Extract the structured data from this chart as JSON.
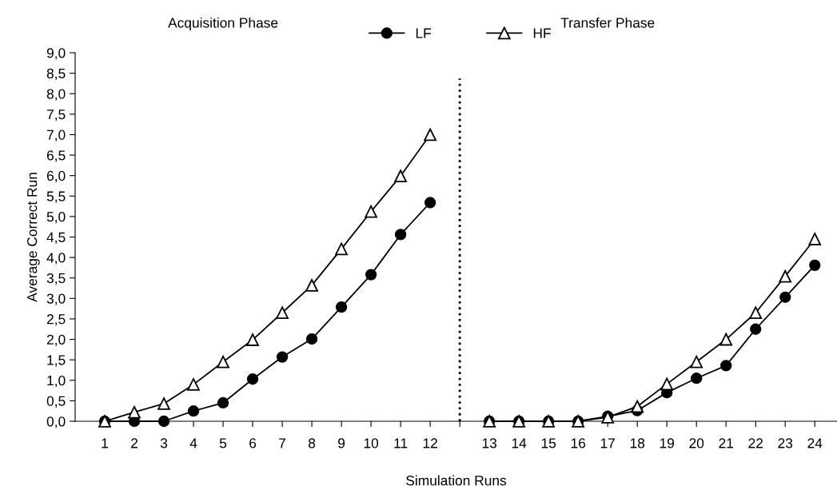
{
  "chart_data": {
    "type": "line",
    "xlabel": "Simulation Runs",
    "ylabel": "Average Correct Run",
    "annotations": [
      "Acquisition Phase",
      "Transfer Phase"
    ],
    "categories": [
      "1",
      "2",
      "3",
      "4",
      "5",
      "6",
      "7",
      "8",
      "9",
      "10",
      "11",
      "12",
      null,
      "13",
      "14",
      "15",
      "16",
      "17",
      "18",
      "19",
      "20",
      "21",
      "22",
      "23",
      "24"
    ],
    "series": [
      {
        "name": "LF",
        "color": "#000000",
        "marker": "circle",
        "values": [
          0,
          0,
          0,
          0.25,
          0.45,
          1.03,
          1.57,
          2.01,
          2.79,
          3.58,
          4.56,
          5.34,
          null,
          0,
          0,
          0,
          0,
          0.12,
          0.26,
          0.7,
          1.05,
          1.36,
          2.25,
          3.03,
          3.81
        ]
      },
      {
        "name": "HF",
        "color": "#000000",
        "marker": "triangle",
        "values": [
          0,
          0.22,
          0.43,
          0.9,
          1.45,
          1.99,
          2.65,
          3.32,
          4.21,
          5.12,
          5.99,
          7.0,
          null,
          0,
          0,
          0,
          0,
          0.1,
          0.36,
          0.91,
          1.45,
          2.0,
          2.65,
          3.54,
          4.45
        ]
      }
    ],
    "ylim": [
      0,
      9
    ],
    "yticks": [
      {
        "value": 0,
        "label": "0,0"
      },
      {
        "value": 0.5,
        "label": "0,5"
      },
      {
        "value": 1,
        "label": "1,0"
      },
      {
        "value": 1.5,
        "label": "1,5"
      },
      {
        "value": 2,
        "label": "2,0"
      },
      {
        "value": 2.5,
        "label": "2,5"
      },
      {
        "value": 3,
        "label": "3,0"
      },
      {
        "value": 3.5,
        "label": "3,5"
      },
      {
        "value": 4,
        "label": "4,0"
      },
      {
        "value": 4.5,
        "label": "4,5"
      },
      {
        "value": 5,
        "label": "5,0"
      },
      {
        "value": 5.5,
        "label": "5,5"
      },
      {
        "value": 6,
        "label": "6,0"
      },
      {
        "value": 6.5,
        "label": "6,5"
      },
      {
        "value": 7,
        "label": "7,0"
      },
      {
        "value": 7.5,
        "label": "7,5"
      },
      {
        "value": 8,
        "label": "8,0"
      },
      {
        "value": 8.5,
        "label": "8,5"
      },
      {
        "value": 9,
        "label": "9,0"
      }
    ],
    "ref_lines": [
      {
        "axis": "x",
        "line_style": "dotted",
        "color": "#000000"
      }
    ],
    "legend": "top",
    "line_style": "solid"
  }
}
